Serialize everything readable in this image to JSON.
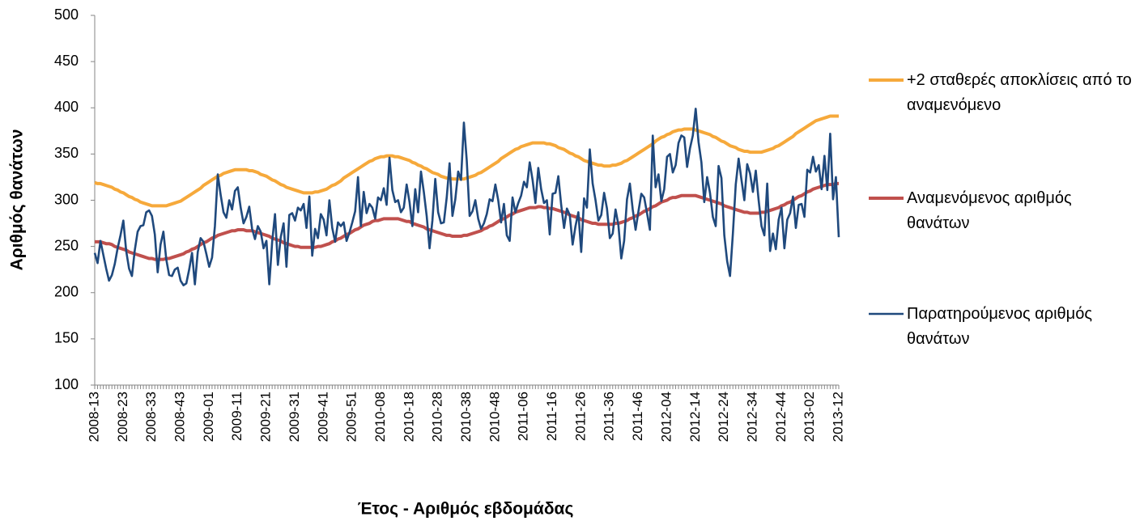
{
  "chart_data": {
    "type": "line",
    "x_label": "Έτος - Αριθμός εβδομάδας",
    "y_label": "Αριθμός θανάτων",
    "ylim": [
      100,
      500
    ],
    "yticks": [
      100,
      150,
      200,
      250,
      300,
      350,
      400,
      450,
      500
    ],
    "grid": false,
    "legend": "right",
    "categories": [
      "2008-13",
      null,
      null,
      null,
      null,
      null,
      null,
      null,
      null,
      null,
      "2008-23",
      null,
      null,
      null,
      null,
      null,
      null,
      null,
      null,
      null,
      "2008-33",
      null,
      null,
      null,
      null,
      null,
      null,
      null,
      null,
      null,
      "2008-43",
      null,
      null,
      null,
      null,
      null,
      null,
      null,
      null,
      null,
      "2009-01",
      null,
      null,
      null,
      null,
      null,
      null,
      null,
      null,
      null,
      "2009-11",
      null,
      null,
      null,
      null,
      null,
      null,
      null,
      null,
      null,
      "2009-21",
      null,
      null,
      null,
      null,
      null,
      null,
      null,
      null,
      null,
      "2009-31",
      null,
      null,
      null,
      null,
      null,
      null,
      null,
      null,
      null,
      "2009-41",
      null,
      null,
      null,
      null,
      null,
      null,
      null,
      null,
      null,
      "2009-51",
      null,
      null,
      null,
      null,
      null,
      null,
      null,
      null,
      null,
      "2010-08",
      null,
      null,
      null,
      null,
      null,
      null,
      null,
      null,
      null,
      "2010-18",
      null,
      null,
      null,
      null,
      null,
      null,
      null,
      null,
      null,
      "2010-28",
      null,
      null,
      null,
      null,
      null,
      null,
      null,
      null,
      null,
      "2010-38",
      null,
      null,
      null,
      null,
      null,
      null,
      null,
      null,
      null,
      "2010-48",
      null,
      null,
      null,
      null,
      null,
      null,
      null,
      null,
      null,
      "2011-06",
      null,
      null,
      null,
      null,
      null,
      null,
      null,
      null,
      null,
      "2011-16",
      null,
      null,
      null,
      null,
      null,
      null,
      null,
      null,
      null,
      "2011-26",
      null,
      null,
      null,
      null,
      null,
      null,
      null,
      null,
      null,
      "2011-36",
      null,
      null,
      null,
      null,
      null,
      null,
      null,
      null,
      null,
      "2011-46",
      null,
      null,
      null,
      null,
      null,
      null,
      null,
      null,
      null,
      "2012-04",
      null,
      null,
      null,
      null,
      null,
      null,
      null,
      null,
      null,
      "2012-14",
      null,
      null,
      null,
      null,
      null,
      null,
      null,
      null,
      null,
      "2012-24",
      null,
      null,
      null,
      null,
      null,
      null,
      null,
      null,
      null,
      "2012-34",
      null,
      null,
      null,
      null,
      null,
      null,
      null,
      null,
      null,
      "2012-44",
      null,
      null,
      null,
      null,
      null,
      null,
      null,
      null,
      null,
      "2013-02",
      null,
      null,
      null,
      null,
      null,
      null,
      null,
      null,
      null,
      "2013-12"
    ],
    "series": [
      {
        "name": "+2 σταθερές αποκλίσεις από το αναμενόμενο",
        "color": "#f6a93b",
        "width": 4,
        "values": [
          319,
          318,
          318,
          317,
          316,
          315,
          314,
          312,
          311,
          309,
          308,
          306,
          304,
          303,
          301,
          300,
          298,
          297,
          296,
          295,
          294,
          294,
          294,
          294,
          294,
          294,
          295,
          296,
          297,
          298,
          299,
          301,
          303,
          305,
          307,
          309,
          311,
          313,
          316,
          318,
          320,
          322,
          324,
          326,
          327,
          329,
          330,
          331,
          332,
          333,
          333,
          333,
          333,
          333,
          332,
          332,
          331,
          330,
          328,
          327,
          326,
          324,
          322,
          321,
          319,
          317,
          316,
          314,
          313,
          312,
          311,
          310,
          309,
          308,
          308,
          308,
          308,
          309,
          309,
          310,
          311,
          312,
          314,
          316,
          317,
          319,
          321,
          324,
          326,
          328,
          330,
          332,
          334,
          336,
          338,
          340,
          342,
          343,
          345,
          346,
          347,
          347,
          348,
          348,
          348,
          347,
          347,
          346,
          345,
          344,
          343,
          341,
          340,
          338,
          337,
          335,
          334,
          332,
          330,
          329,
          328,
          326,
          325,
          324,
          324,
          323,
          323,
          323,
          323,
          323,
          324,
          325,
          326,
          327,
          329,
          330,
          332,
          334,
          336,
          338,
          340,
          342,
          345,
          347,
          349,
          351,
          353,
          355,
          356,
          358,
          359,
          360,
          361,
          362,
          362,
          362,
          362,
          362,
          361,
          361,
          360,
          359,
          357,
          356,
          355,
          353,
          351,
          350,
          348,
          347,
          345,
          343,
          342,
          341,
          340,
          339,
          338,
          338,
          337,
          337,
          337,
          338,
          338,
          339,
          340,
          342,
          343,
          345,
          347,
          349,
          351,
          353,
          355,
          357,
          359,
          361,
          364,
          366,
          368,
          369,
          371,
          372,
          374,
          375,
          376,
          376,
          377,
          377,
          377,
          377,
          376,
          375,
          374,
          373,
          372,
          371,
          369,
          368,
          366,
          364,
          363,
          361,
          359,
          358,
          357,
          355,
          354,
          353,
          353,
          352,
          352,
          352,
          352,
          352,
          353,
          354,
          355,
          356,
          358,
          359,
          361,
          363,
          365,
          367,
          369,
          372,
          374,
          376,
          378,
          380,
          382,
          384,
          386,
          387,
          388,
          389,
          390,
          391,
          391,
          391,
          391
        ]
      },
      {
        "name": "Αναμενόμενος αριθμός θανάτων",
        "color": "#c0504d",
        "width": 4,
        "values": [
          255,
          255,
          255,
          254,
          253,
          253,
          252,
          250,
          249,
          248,
          247,
          246,
          244,
          243,
          242,
          241,
          240,
          239,
          238,
          237,
          237,
          236,
          236,
          236,
          236,
          237,
          237,
          238,
          239,
          240,
          241,
          242,
          244,
          245,
          247,
          248,
          250,
          252,
          254,
          255,
          257,
          259,
          260,
          262,
          263,
          264,
          265,
          266,
          267,
          267,
          268,
          268,
          268,
          267,
          267,
          267,
          266,
          265,
          264,
          263,
          262,
          261,
          259,
          258,
          257,
          256,
          254,
          253,
          252,
          251,
          250,
          250,
          249,
          249,
          249,
          249,
          249,
          249,
          250,
          250,
          251,
          252,
          253,
          255,
          256,
          258,
          259,
          261,
          263,
          264,
          266,
          268,
          269,
          271,
          273,
          274,
          275,
          277,
          278,
          278,
          279,
          280,
          280,
          280,
          280,
          280,
          280,
          279,
          278,
          277,
          277,
          275,
          274,
          273,
          272,
          271,
          269,
          268,
          267,
          266,
          265,
          264,
          263,
          262,
          262,
          261,
          261,
          261,
          261,
          262,
          262,
          263,
          264,
          265,
          266,
          267,
          269,
          270,
          272,
          273,
          275,
          277,
          279,
          280,
          282,
          284,
          285,
          287,
          288,
          289,
          290,
          291,
          292,
          292,
          292,
          293,
          293,
          292,
          292,
          291,
          291,
          290,
          289,
          288,
          287,
          286,
          284,
          283,
          282,
          281,
          279,
          278,
          277,
          276,
          275,
          275,
          274,
          274,
          274,
          274,
          274,
          274,
          275,
          275,
          276,
          277,
          278,
          280,
          281,
          283,
          284,
          286,
          288,
          289,
          291,
          293,
          294,
          296,
          298,
          299,
          300,
          302,
          303,
          303,
          304,
          305,
          305,
          305,
          305,
          305,
          305,
          304,
          303,
          302,
          301,
          300,
          299,
          298,
          297,
          296,
          294,
          293,
          292,
          291,
          290,
          289,
          288,
          287,
          287,
          286,
          286,
          286,
          286,
          287,
          287,
          288,
          289,
          290,
          291,
          292,
          294,
          295,
          297,
          298,
          300,
          302,
          304,
          305,
          307,
          309,
          310,
          312,
          313,
          314,
          315,
          316,
          317,
          317,
          317,
          318,
          318
        ]
      },
      {
        "name": "Παρατηρούμενος αριθμός θανάτων",
        "color": "#1f497d",
        "width": 2.6,
        "values": [
          243,
          232,
          256,
          241,
          226,
          213,
          219,
          231,
          248,
          262,
          278,
          245,
          226,
          218,
          246,
          266,
          272,
          273,
          287,
          289,
          283,
          263,
          222,
          252,
          266,
          236,
          219,
          218,
          225,
          227,
          213,
          208,
          210,
          225,
          243,
          209,
          244,
          259,
          255,
          242,
          228,
          238,
          272,
          328,
          306,
          287,
          281,
          300,
          290,
          310,
          314,
          292,
          275,
          282,
          293,
          269,
          258,
          272,
          266,
          248,
          256,
          209,
          255,
          285,
          230,
          260,
          275,
          228,
          284,
          286,
          278,
          292,
          289,
          296,
          270,
          304,
          240,
          269,
          259,
          285,
          279,
          262,
          300,
          270,
          255,
          276,
          272,
          276,
          256,
          265,
          276,
          288,
          325,
          272,
          309,
          286,
          296,
          292,
          280,
          303,
          300,
          313,
          295,
          346,
          311,
          298,
          300,
          287,
          292,
          317,
          298,
          272,
          312,
          287,
          331,
          309,
          283,
          248,
          278,
          323,
          287,
          275,
          276,
          303,
          340,
          283,
          301,
          331,
          322,
          384,
          343,
          283,
          288,
          300,
          280,
          269,
          275,
          285,
          301,
          299,
          317,
          300,
          276,
          296,
          262,
          256,
          303,
          287,
          297,
          305,
          320,
          314,
          341,
          322,
          297,
          335,
          312,
          297,
          300,
          263,
          307,
          308,
          326,
          295,
          270,
          291,
          284,
          252,
          272,
          287,
          244,
          302,
          292,
          355,
          318,
          300,
          278,
          284,
          308,
          291,
          259,
          264,
          290,
          273,
          237,
          256,
          301,
          318,
          290,
          268,
          288,
          307,
          303,
          286,
          268,
          370,
          314,
          328,
          299,
          312,
          347,
          350,
          330,
          338,
          362,
          370,
          368,
          336,
          356,
          370,
          399,
          363,
          341,
          298,
          325,
          308,
          282,
          272,
          337,
          324,
          262,
          234,
          218,
          264,
          317,
          345,
          322,
          300,
          339,
          329,
          309,
          332,
          300,
          272,
          262,
          318,
          245,
          264,
          247,
          279,
          292,
          248,
          279,
          286,
          304,
          270,
          295,
          296,
          282,
          333,
          330,
          347,
          331,
          338,
          312,
          348,
          311,
          372,
          301,
          325,
          260
        ]
      }
    ]
  }
}
